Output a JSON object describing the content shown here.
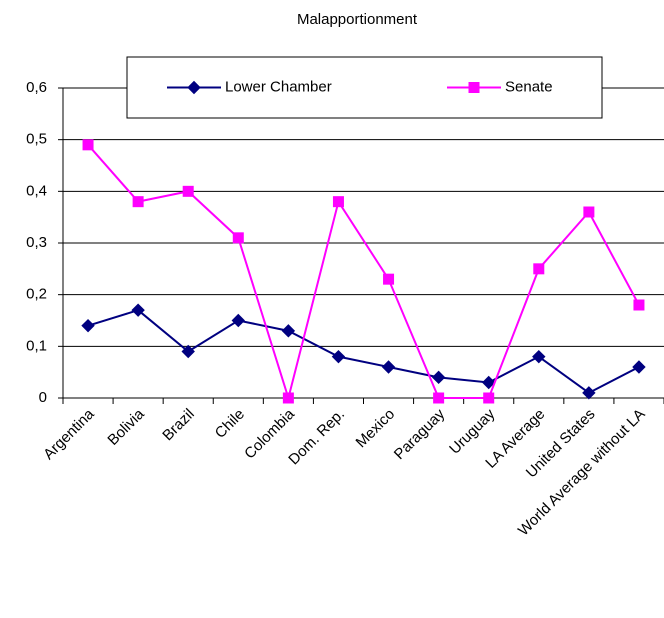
{
  "chart_data": {
    "type": "line",
    "title": "Malapportionment",
    "categories": [
      "Argentina",
      "Bolivia",
      "Brazil",
      "Chile",
      "Colombia",
      "Dom. Rep.",
      "Mexico",
      "Paraguay",
      "Uruguay",
      "LA Average",
      "United States",
      "World Average without LA"
    ],
    "series": [
      {
        "name": "Lower Chamber",
        "color": "#000080",
        "marker": "diamond",
        "values": [
          0.14,
          0.17,
          0.09,
          0.15,
          0.13,
          0.08,
          0.06,
          0.04,
          0.03,
          0.08,
          0.01,
          0.06
        ]
      },
      {
        "name": "Senate",
        "color": "#ff00ff",
        "marker": "square",
        "values": [
          0.49,
          0.38,
          0.4,
          0.31,
          0,
          0.38,
          0.23,
          0,
          0,
          0.25,
          0.36,
          0.18
        ]
      }
    ],
    "ylim": [
      0,
      0.6
    ],
    "yticks": [
      0,
      {
        "value": 0.1,
        "label": "0,1"
      },
      {
        "value": 0.2,
        "label": "0,2"
      },
      {
        "value": 0.3,
        "label": "0,3"
      },
      {
        "value": 0.4,
        "label": "0,4"
      },
      {
        "value": 0.5,
        "label": "0,5"
      },
      {
        "value": 0.6,
        "label": "0,6"
      }
    ],
    "grid": true,
    "legend": "upper center"
  }
}
